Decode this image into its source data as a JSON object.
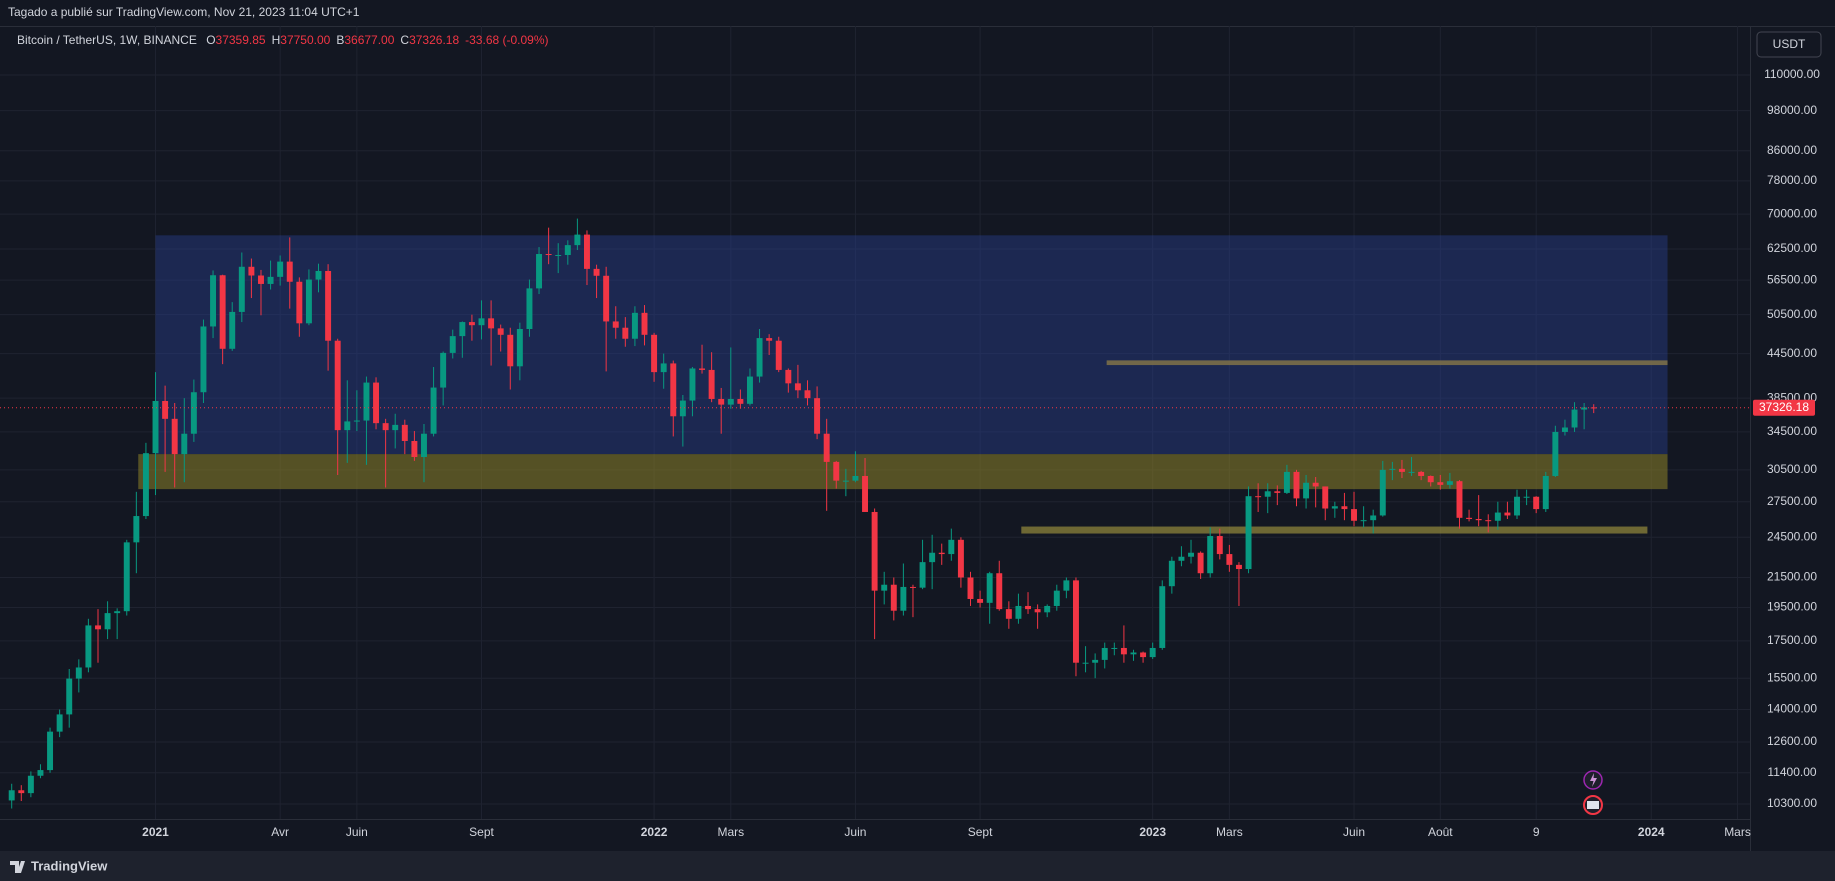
{
  "header": {
    "text": "Tagado a publié sur TradingView.com, Nov 21, 2023 11:04 UTC+1"
  },
  "footer": {
    "brand": "TradingView"
  },
  "currency_button": "USDT",
  "chart_data": {
    "type": "candlestick",
    "title": "Bitcoin / TetherUS, 1W, BINANCE",
    "legend_keys": [
      "O",
      "H",
      "B",
      "C"
    ],
    "legend_values": [
      "37359.85",
      "37750.00",
      "36677.00",
      "37326.18"
    ],
    "change": "-33.68 (-0.09%)",
    "up_color": "#089981",
    "down_color": "#f23645",
    "log_scale": true,
    "grid": true,
    "xlim": [
      -1.22,
      181.3
    ],
    "ylim": [
      9810,
      129000
    ],
    "xticks": [
      {
        "value": 15,
        "label": "2021"
      },
      {
        "value": 28,
        "label": "Avr"
      },
      {
        "value": 36,
        "label": "Juin"
      },
      {
        "value": 49,
        "label": "Sept"
      },
      {
        "value": 67,
        "label": "2022"
      },
      {
        "value": 75,
        "label": "Mars"
      },
      {
        "value": 88,
        "label": "Juin"
      },
      {
        "value": 101,
        "label": "Sept"
      },
      {
        "value": 119,
        "label": "2023"
      },
      {
        "value": 127,
        "label": "Mars"
      },
      {
        "value": 140,
        "label": "Juin"
      },
      {
        "value": 149,
        "label": "Août"
      },
      {
        "value": 159,
        "label": "9"
      },
      {
        "value": 171,
        "label": "2024"
      },
      {
        "value": 180,
        "label": "Mars"
      }
    ],
    "yticks": [
      {
        "value": 110000,
        "label": "110000.00"
      },
      {
        "value": 98000,
        "label": "98000.00"
      },
      {
        "value": 86000,
        "label": "86000.00"
      },
      {
        "value": 78000,
        "label": "78000.00"
      },
      {
        "value": 70000,
        "label": "70000.00"
      },
      {
        "value": 62500,
        "label": "62500.00"
      },
      {
        "value": 56500,
        "label": "56500.00"
      },
      {
        "value": 50500,
        "label": "50500.00"
      },
      {
        "value": 44500,
        "label": "44500.00"
      },
      {
        "value": 38500,
        "label": "38500.00"
      },
      {
        "value": 34500,
        "label": "34500.00"
      },
      {
        "value": 30500,
        "label": "30500.00"
      },
      {
        "value": 27500,
        "label": "27500.00"
      },
      {
        "value": 24500,
        "label": "24500.00"
      },
      {
        "value": 21500,
        "label": "21500.00"
      },
      {
        "value": 19500,
        "label": "19500.00"
      },
      {
        "value": 17500,
        "label": "17500.00"
      },
      {
        "value": 15500,
        "label": "15500.00"
      },
      {
        "value": 14000,
        "label": "14000.00"
      },
      {
        "value": 12600,
        "label": "12600.00"
      },
      {
        "value": 11400,
        "label": "11400.00"
      },
      {
        "value": 10300,
        "label": "10300.00"
      }
    ],
    "zones": [
      {
        "x": [
          15,
          172.7
        ],
        "y": [
          32100,
          65350
        ],
        "color": "rgba(41,62,140,0.45)"
      },
      {
        "x": [
          13.2,
          172.7
        ],
        "y": [
          28650,
          32100
        ],
        "color": "rgba(140,130,40,0.55)"
      },
      {
        "x": [
          114.2,
          172.7
        ],
        "y": [
          42870,
          43530
        ],
        "color": "rgba(150,130,70,0.7)"
      },
      {
        "x": [
          105.3,
          170.6
        ],
        "y": [
          24800,
          25370
        ],
        "color": "rgba(150,140,60,0.7)"
      }
    ],
    "candles": [
      [
        10420,
        11000,
        10150,
        10770
      ],
      [
        10770,
        10950,
        10400,
        10670
      ],
      [
        10670,
        11450,
        10530,
        11290
      ],
      [
        11290,
        11720,
        11200,
        11500
      ],
      [
        11500,
        13200,
        11400,
        13030
      ],
      [
        13030,
        14000,
        12800,
        13780
      ],
      [
        13780,
        15970,
        13200,
        15480
      ],
      [
        15480,
        16480,
        14800,
        16050
      ],
      [
        16050,
        18800,
        15800,
        18400
      ],
      [
        18400,
        19400,
        16300,
        18170
      ],
      [
        18170,
        19900,
        17600,
        19150
      ],
      [
        19150,
        19450,
        17600,
        19270
      ],
      [
        19270,
        24300,
        19000,
        24100
      ],
      [
        24100,
        28400,
        21800,
        26250
      ],
      [
        26250,
        33300,
        26000,
        32200
      ],
      [
        32200,
        41900,
        28100,
        38150
      ],
      [
        38150,
        40100,
        30300,
        36000
      ],
      [
        36000,
        37900,
        28800,
        32100
      ],
      [
        32100,
        38500,
        29300,
        34300
      ],
      [
        34300,
        40900,
        33400,
        39250
      ],
      [
        39250,
        49700,
        37900,
        48600
      ],
      [
        48600,
        58300,
        46800,
        57400
      ],
      [
        57400,
        57500,
        43000,
        45200
      ],
      [
        45200,
        52600,
        44900,
        50950
      ],
      [
        50950,
        61800,
        49300,
        59000
      ],
      [
        59000,
        60600,
        53300,
        57350
      ],
      [
        57350,
        58400,
        50400,
        55800
      ],
      [
        55800,
        60200,
        54800,
        57100
      ],
      [
        57100,
        61200,
        55500,
        60000
      ],
      [
        60000,
        64900,
        51500,
        56200
      ],
      [
        56200,
        57000,
        47000,
        49100
      ],
      [
        49100,
        58500,
        48800,
        56600
      ],
      [
        56600,
        59600,
        54300,
        58200
      ],
      [
        58200,
        59500,
        42100,
        46400
      ],
      [
        46400,
        46700,
        30000,
        34700
      ],
      [
        34700,
        40800,
        31200,
        35700
      ],
      [
        35700,
        39500,
        34600,
        35800
      ],
      [
        35800,
        41300,
        31000,
        40500
      ],
      [
        40500,
        41200,
        34800,
        35500
      ],
      [
        35500,
        36000,
        28800,
        34700
      ],
      [
        34700,
        36600,
        32700,
        35300
      ],
      [
        35300,
        35900,
        32100,
        33500
      ],
      [
        33500,
        34600,
        31400,
        31800
      ],
      [
        31800,
        35400,
        29300,
        34300
      ],
      [
        34300,
        42600,
        34000,
        39850
      ],
      [
        39850,
        44800,
        37600,
        44600
      ],
      [
        44600,
        48100,
        43800,
        47100
      ],
      [
        47100,
        49400,
        43900,
        49300
      ],
      [
        49300,
        50500,
        46400,
        48800
      ],
      [
        48800,
        52900,
        46600,
        49900
      ],
      [
        49900,
        52900,
        42800,
        48300
      ],
      [
        48300,
        48900,
        44800,
        47300
      ],
      [
        47300,
        48400,
        39600,
        42700
      ],
      [
        42700,
        49200,
        40800,
        48200
      ],
      [
        48200,
        56600,
        47000,
        55000
      ],
      [
        55000,
        62900,
        54000,
        61500
      ],
      [
        61500,
        67000,
        59500,
        61300
      ],
      [
        61300,
        63700,
        57800,
        61300
      ],
      [
        61300,
        64300,
        59400,
        63300
      ],
      [
        63300,
        69000,
        62300,
        65500
      ],
      [
        65500,
        66400,
        55600,
        58600
      ],
      [
        58600,
        59400,
        53300,
        57300
      ],
      [
        57300,
        59000,
        42000,
        49400
      ],
      [
        49400,
        51900,
        46700,
        48400
      ],
      [
        48400,
        50100,
        45500,
        46700
      ],
      [
        46700,
        51900,
        45600,
        50800
      ],
      [
        50800,
        52100,
        45700,
        47300
      ],
      [
        47300,
        47600,
        40600,
        41900
      ],
      [
        41900,
        44500,
        39700,
        43100
      ],
      [
        43100,
        43500,
        34000,
        36300
      ],
      [
        36300,
        38900,
        32900,
        38200
      ],
      [
        38200,
        42600,
        36300,
        42400
      ],
      [
        42400,
        45800,
        41700,
        42200
      ],
      [
        42200,
        44700,
        38000,
        38400
      ],
      [
        38400,
        39800,
        34300,
        37700
      ],
      [
        37700,
        45400,
        37200,
        38400
      ],
      [
        38400,
        39600,
        37200,
        37800
      ],
      [
        37800,
        42400,
        37600,
        41300
      ],
      [
        41300,
        48200,
        40500,
        46800
      ],
      [
        46800,
        47400,
        44300,
        46400
      ],
      [
        46400,
        47000,
        41900,
        42200
      ],
      [
        42200,
        42400,
        39200,
        40400
      ],
      [
        40400,
        42900,
        38500,
        39500
      ],
      [
        39500,
        40800,
        37600,
        38500
      ],
      [
        38500,
        40000,
        33700,
        34300
      ],
      [
        34300,
        36000,
        26700,
        31300
      ],
      [
        31300,
        31400,
        28700,
        29450
      ],
      [
        29450,
        30600,
        28000,
        29450
      ],
      [
        29450,
        32400,
        29300,
        29900
      ],
      [
        29900,
        31700,
        26600,
        26600
      ],
      [
        26600,
        26900,
        17600,
        20600
      ],
      [
        20600,
        21900,
        19700,
        21000
      ],
      [
        21000,
        21500,
        18700,
        19300
      ],
      [
        19300,
        22500,
        19000,
        20850
      ],
      [
        20850,
        21000,
        18900,
        20800
      ],
      [
        20800,
        24300,
        20700,
        22600
      ],
      [
        22600,
        24700,
        20700,
        23300
      ],
      [
        23300,
        24000,
        22400,
        23200
      ],
      [
        23200,
        25200,
        22700,
        24300
      ],
      [
        24300,
        24500,
        20800,
        21500
      ],
      [
        21500,
        21900,
        19600,
        20050
      ],
      [
        20050,
        20600,
        19500,
        19800
      ],
      [
        19800,
        21900,
        18500,
        21800
      ],
      [
        21800,
        22700,
        19300,
        19400
      ],
      [
        19400,
        19900,
        18200,
        18800
      ],
      [
        18800,
        20400,
        18500,
        19600
      ],
      [
        19600,
        20500,
        19100,
        19400
      ],
      [
        19400,
        19700,
        18200,
        19200
      ],
      [
        19200,
        19700,
        18900,
        19600
      ],
      [
        19600,
        21000,
        19300,
        20600
      ],
      [
        20600,
        21500,
        20100,
        21300
      ],
      [
        21300,
        21500,
        15600,
        16300
      ],
      [
        16300,
        17200,
        15800,
        16300
      ],
      [
        16300,
        16800,
        15500,
        16450
      ],
      [
        16450,
        17400,
        16000,
        17100
      ],
      [
        17100,
        17400,
        16700,
        17100
      ],
      [
        17100,
        18400,
        16300,
        16750
      ],
      [
        16750,
        17000,
        16400,
        16850
      ],
      [
        16850,
        16900,
        16300,
        16600
      ],
      [
        16600,
        17400,
        16500,
        17100
      ],
      [
        17100,
        21300,
        17000,
        20900
      ],
      [
        20900,
        23000,
        20400,
        22700
      ],
      [
        22700,
        23800,
        22300,
        23000
      ],
      [
        23000,
        24300,
        22500,
        23300
      ],
      [
        23300,
        23400,
        21400,
        21800
      ],
      [
        21800,
        25300,
        21500,
        24600
      ],
      [
        24600,
        25200,
        22800,
        23200
      ],
      [
        23200,
        23900,
        21900,
        22400
      ],
      [
        22400,
        22600,
        19600,
        22100
      ],
      [
        22100,
        28900,
        21800,
        28000
      ],
      [
        28000,
        29200,
        26600,
        27950
      ],
      [
        27950,
        29200,
        26500,
        28450
      ],
      [
        28450,
        29000,
        27200,
        28300
      ],
      [
        28300,
        31000,
        28200,
        30300
      ],
      [
        30300,
        30500,
        27100,
        27800
      ],
      [
        27800,
        30000,
        26900,
        29250
      ],
      [
        29250,
        29800,
        27000,
        28900
      ],
      [
        28900,
        28900,
        25900,
        26900
      ],
      [
        26900,
        27500,
        26100,
        27100
      ],
      [
        27100,
        28300,
        25900,
        26850
      ],
      [
        26850,
        28400,
        25400,
        25850
      ],
      [
        25850,
        27100,
        25300,
        25900
      ],
      [
        25900,
        26800,
        24800,
        26300
      ],
      [
        26300,
        31400,
        26200,
        30500
      ],
      [
        30500,
        31300,
        29500,
        30600
      ],
      [
        30600,
        31500,
        29700,
        30300
      ],
      [
        30300,
        31800,
        29900,
        30300
      ],
      [
        30300,
        30400,
        29500,
        29900
      ],
      [
        29900,
        29950,
        28900,
        29300
      ],
      [
        29300,
        30000,
        28600,
        29050
      ],
      [
        29050,
        30200,
        28700,
        29400
      ],
      [
        29400,
        29500,
        25200,
        26100
      ],
      [
        26100,
        26800,
        25800,
        26000
      ],
      [
        26000,
        28100,
        25400,
        25900
      ],
      [
        25900,
        26400,
        24900,
        25850
      ],
      [
        25850,
        27500,
        25100,
        26550
      ],
      [
        26550,
        27500,
        26000,
        26300
      ],
      [
        26300,
        28600,
        26000,
        27950
      ],
      [
        27950,
        28600,
        27200,
        27950
      ],
      [
        27950,
        28000,
        26500,
        26850
      ],
      [
        26850,
        30300,
        26600,
        29900
      ],
      [
        29900,
        35200,
        29800,
        34500
      ],
      [
        34500,
        35900,
        34100,
        35000
      ],
      [
        35000,
        38000,
        34500,
        37100
      ],
      [
        37100,
        37900,
        34800,
        37360
      ],
      [
        37359.85,
        37750,
        36677,
        37326.18
      ]
    ]
  }
}
